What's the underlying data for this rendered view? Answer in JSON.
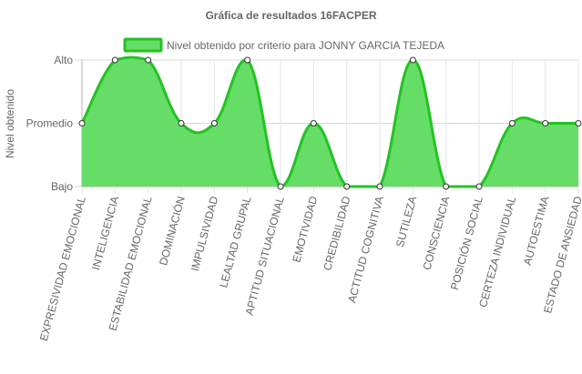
{
  "chart_data": {
    "type": "area",
    "title": "Gráfica de resultados 16FACPER",
    "ylabel": "Nivel obtenido",
    "xlabel": "",
    "y_ticks": [
      "Bajo",
      "Promedio",
      "Alto"
    ],
    "ylim": [
      1,
      3
    ],
    "grid": true,
    "legend_position": "top",
    "categories": [
      "EXPRESIVIDAD EMOCIONAL",
      "INTELIGENCIA",
      "ESTABILIDAD EMOCIONAL",
      "DOMINACIÓN",
      "IMPULSIVIDAD",
      "LEALTAD GRUPAL",
      "APTITUD SITUACIONAL",
      "EMOTIVIDAD",
      "CREDIBILIDAD",
      "ACTITUD COGNITIVA",
      "SUTILEZA",
      "CONSCIENCIA",
      "POSICIÓN SOCIAL",
      "CERTEZA INDIVIDUAL",
      "AUTOESTIMA",
      "ESTADO DE ANSIEDAD"
    ],
    "series": [
      {
        "name": "Nivel obtenido por criterio para JONNY GARCIA TEJEDA",
        "values": [
          2,
          3,
          3,
          2,
          2,
          3,
          1,
          2,
          1,
          1,
          3,
          1,
          1,
          2,
          2,
          2
        ],
        "fill_color": "#66dd66",
        "line_color": "#22c322"
      }
    ]
  }
}
